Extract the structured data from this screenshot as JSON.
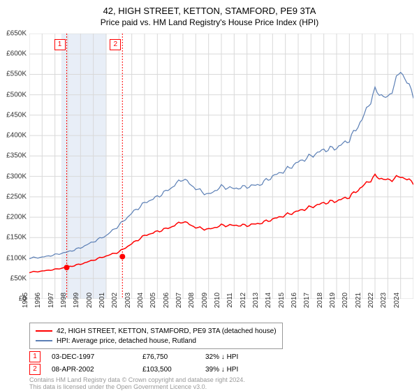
{
  "title": "42, HIGH STREET, KETTON, STAMFORD, PE9 3TA",
  "subtitle": "Price paid vs. HM Land Registry's House Price Index (HPI)",
  "chart": {
    "type": "line",
    "background_color": "#ffffff",
    "grid_color": "#d9d9d9",
    "shade_band_color": "#e8eef7",
    "shade_band": {
      "x_start": 1997.5,
      "x_end": 2001.0
    },
    "x": {
      "min": 1995,
      "max": 2025,
      "tick_step": 1,
      "labels": [
        "1995",
        "1996",
        "1997",
        "1998",
        "1999",
        "2000",
        "2001",
        "2002",
        "2003",
        "2004",
        "2005",
        "2006",
        "2007",
        "2008",
        "2009",
        "2010",
        "2011",
        "2012",
        "2013",
        "2014",
        "2015",
        "2016",
        "2017",
        "2018",
        "2019",
        "2020",
        "2021",
        "2022",
        "2023",
        "2024"
      ]
    },
    "y": {
      "min": 0,
      "max": 650000,
      "tick_step": 50000,
      "labels": [
        "£0",
        "£50K",
        "£100K",
        "£150K",
        "£200K",
        "£250K",
        "£300K",
        "£350K",
        "£400K",
        "£450K",
        "£500K",
        "£550K",
        "£600K",
        "£650K"
      ]
    },
    "series": [
      {
        "name": "property",
        "label": "42, HIGH STREET, KETTON, STAMFORD, PE9 3TA (detached house)",
        "color": "#ff0000",
        "line_width": 1.5,
        "x": [
          1995,
          1996,
          1997,
          1998,
          1999,
          2000,
          2001,
          2002,
          2003,
          2004,
          2005,
          2006,
          2007,
          2008,
          2009,
          2010,
          2011,
          2012,
          2013,
          2014,
          2015,
          2016,
          2017,
          2018,
          2019,
          2020,
          2021,
          2022,
          2023,
          2024,
          2025
        ],
        "y": [
          65000,
          68000,
          72000,
          78000,
          85000,
          95000,
          105000,
          115000,
          135000,
          155000,
          165000,
          175000,
          190000,
          175000,
          170000,
          180000,
          180000,
          180000,
          185000,
          195000,
          205000,
          215000,
          225000,
          235000,
          240000,
          250000,
          275000,
          300000,
          290000,
          300000,
          285000
        ]
      },
      {
        "name": "hpi",
        "label": "HPI: Average price, detached house, Rutland",
        "color": "#5b7fb5",
        "line_width": 1.2,
        "x": [
          1995,
          1996,
          1997,
          1998,
          1999,
          2000,
          2001,
          2002,
          2003,
          2004,
          2005,
          2006,
          2007,
          2008,
          2009,
          2010,
          2011,
          2012,
          2013,
          2014,
          2015,
          2016,
          2017,
          2018,
          2019,
          2020,
          2021,
          2022,
          2023,
          2024,
          2025
        ],
        "y": [
          100000,
          102000,
          108000,
          115000,
          125000,
          140000,
          155000,
          180000,
          210000,
          235000,
          250000,
          270000,
          295000,
          270000,
          255000,
          275000,
          270000,
          275000,
          280000,
          300000,
          315000,
          335000,
          350000,
          365000,
          370000,
          390000,
          440000,
          510000,
          490000,
          560000,
          500000
        ]
      }
    ],
    "sale_markers": [
      {
        "id": "1",
        "x": 1997.92,
        "y": 76750,
        "vline_color": "#ff0000",
        "dot_color": "#ff0000"
      },
      {
        "id": "2",
        "x": 2002.27,
        "y": 103500,
        "vline_color": "#ff0000",
        "dot_color": "#ff0000"
      }
    ]
  },
  "legend": {
    "items": [
      {
        "color": "#ff0000",
        "label": "42, HIGH STREET, KETTON, STAMFORD, PE9 3TA (detached house)"
      },
      {
        "color": "#5b7fb5",
        "label": "HPI: Average price, detached house, Rutland"
      }
    ]
  },
  "sales": [
    {
      "id": "1",
      "date": "03-DEC-1997",
      "price": "£76,750",
      "delta": "32% ↓ HPI"
    },
    {
      "id": "2",
      "date": "08-APR-2002",
      "price": "£103,500",
      "delta": "39% ↓ HPI"
    }
  ],
  "footer_line1": "Contains HM Land Registry data © Crown copyright and database right 2024.",
  "footer_line2": "This data is licensed under the Open Government Licence v3.0."
}
